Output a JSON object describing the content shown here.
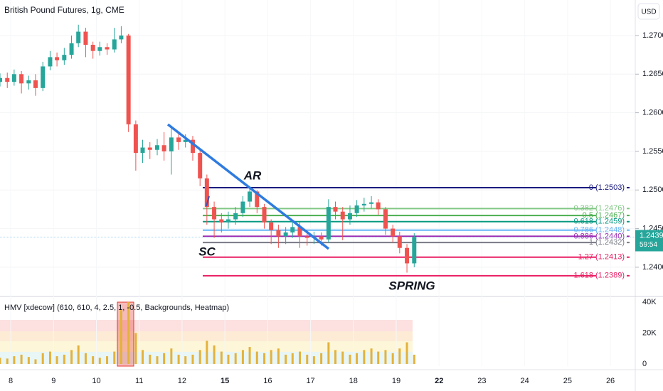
{
  "chart_data": {
    "type": "candlestick",
    "title": "British Pound Futures, 1g, CME",
    "currency": "USD",
    "up_color": "#26a69a",
    "down_color": "#ef5350",
    "xlim": [
      -0.25,
      14.58
    ],
    "xticks": [
      {
        "value": 0,
        "label": "8"
      },
      {
        "value": 1,
        "label": "9"
      },
      {
        "value": 2,
        "label": "10"
      },
      {
        "value": 3,
        "label": "11"
      },
      {
        "value": 4,
        "label": "12"
      },
      {
        "value": 5,
        "label": "15"
      },
      {
        "value": 6,
        "label": "16"
      },
      {
        "value": 7,
        "label": "17"
      },
      {
        "value": 8,
        "label": "18"
      },
      {
        "value": 9,
        "label": "19"
      },
      {
        "value": 10,
        "label": "22"
      },
      {
        "value": 11,
        "label": "23"
      },
      {
        "value": 12,
        "label": "24"
      },
      {
        "value": 13,
        "label": "25"
      },
      {
        "value": 14,
        "label": "26"
      }
    ],
    "ylim": [
      1.2364,
      1.2746
    ],
    "yticks": [
      {
        "value": 1.24,
        "label": "1.2400"
      },
      {
        "value": 1.245,
        "label": "1.2450"
      },
      {
        "value": 1.25,
        "label": "1.2500"
      },
      {
        "value": 1.255,
        "label": "1.2550"
      },
      {
        "value": 1.26,
        "label": "1.2600"
      },
      {
        "value": 1.265,
        "label": "1.2650"
      },
      {
        "value": 1.27,
        "label": "1.2700"
      }
    ],
    "x": [
      -0.25,
      -0.08,
      0.08,
      0.25,
      0.42,
      0.58,
      0.75,
      0.92,
      1.08,
      1.25,
      1.42,
      1.58,
      1.75,
      1.92,
      2.08,
      2.25,
      2.42,
      2.58,
      2.75,
      2.92,
      3.08,
      3.25,
      3.42,
      3.58,
      3.75,
      3.92,
      4.08,
      4.25,
      4.42,
      4.58,
      4.75,
      4.92,
      5.08,
      5.25,
      5.42,
      5.58,
      5.75,
      5.92,
      6.08,
      6.25,
      6.42,
      6.58,
      6.75,
      6.92,
      7.08,
      7.25,
      7.42,
      7.58,
      7.75,
      7.92,
      8.08,
      8.25,
      8.42,
      8.58,
      8.75,
      8.92,
      9.08,
      9.25,
      9.42
    ],
    "ohlc": [
      [
        1.264,
        1.2651,
        1.2634,
        1.2645
      ],
      [
        1.2645,
        1.2652,
        1.2632,
        1.264
      ],
      [
        1.264,
        1.2656,
        1.2635,
        1.265
      ],
      [
        1.265,
        1.2654,
        1.2625,
        1.2638
      ],
      [
        1.2638,
        1.2648,
        1.263,
        1.2642
      ],
      [
        1.2642,
        1.265,
        1.2622,
        1.2632
      ],
      [
        1.2632,
        1.2666,
        1.2628,
        1.266
      ],
      [
        1.266,
        1.268,
        1.2655,
        1.2672
      ],
      [
        1.2672,
        1.2678,
        1.266,
        1.2668
      ],
      [
        1.2668,
        1.2684,
        1.2662,
        1.2675
      ],
      [
        1.2675,
        1.27,
        1.267,
        1.269
      ],
      [
        1.269,
        1.2714,
        1.2685,
        1.2705
      ],
      [
        1.2705,
        1.271,
        1.2672,
        1.2688
      ],
      [
        1.2688,
        1.2692,
        1.267,
        1.268
      ],
      [
        1.268,
        1.2692,
        1.2674,
        1.2685
      ],
      [
        1.2685,
        1.269,
        1.2675,
        1.2682
      ],
      [
        1.2682,
        1.271,
        1.2678,
        1.2695
      ],
      [
        1.2695,
        1.2712,
        1.269,
        1.27
      ],
      [
        1.27,
        1.2702,
        1.2575,
        1.2585
      ],
      [
        1.2585,
        1.259,
        1.2525,
        1.2548
      ],
      [
        1.2548,
        1.2565,
        1.2535,
        1.2555
      ],
      [
        1.2555,
        1.2562,
        1.254,
        1.2552
      ],
      [
        1.2552,
        1.2566,
        1.2545,
        1.2558
      ],
      [
        1.2558,
        1.2575,
        1.2538,
        1.255
      ],
      [
        1.255,
        1.258,
        1.252,
        1.2568
      ],
      [
        1.2568,
        1.2575,
        1.2552,
        1.2562
      ],
      [
        1.2562,
        1.2572,
        1.2555,
        1.2565
      ],
      [
        1.2565,
        1.257,
        1.2538,
        1.2548
      ],
      [
        1.2548,
        1.2552,
        1.2505,
        1.2515
      ],
      [
        1.2515,
        1.252,
        1.2455,
        1.2478
      ],
      [
        1.2478,
        1.2485,
        1.2438,
        1.2462
      ],
      [
        1.2462,
        1.247,
        1.2445,
        1.2458
      ],
      [
        1.2458,
        1.2472,
        1.245,
        1.2462
      ],
      [
        1.2462,
        1.2478,
        1.2455,
        1.247
      ],
      [
        1.247,
        1.2492,
        1.2465,
        1.2485
      ],
      [
        1.2485,
        1.2505,
        1.2478,
        1.2498
      ],
      [
        1.2498,
        1.25,
        1.247,
        1.2478
      ],
      [
        1.2478,
        1.2482,
        1.245,
        1.2458
      ],
      [
        1.2458,
        1.2462,
        1.243,
        1.2448
      ],
      [
        1.2448,
        1.2455,
        1.2425,
        1.244
      ],
      [
        1.244,
        1.2452,
        1.243,
        1.2445
      ],
      [
        1.2445,
        1.246,
        1.2438,
        1.2452
      ],
      [
        1.2452,
        1.2458,
        1.2425,
        1.244
      ],
      [
        1.244,
        1.2448,
        1.2428,
        1.2438
      ],
      [
        1.2438,
        1.2446,
        1.243,
        1.244
      ],
      [
        1.244,
        1.2445,
        1.2428,
        1.2436
      ],
      [
        1.2436,
        1.2488,
        1.2432,
        1.2478
      ],
      [
        1.2478,
        1.2485,
        1.2462,
        1.2472
      ],
      [
        1.2472,
        1.2478,
        1.2435,
        1.2462
      ],
      [
        1.2462,
        1.248,
        1.2455,
        1.247
      ],
      [
        1.247,
        1.2487,
        1.2465,
        1.248
      ],
      [
        1.248,
        1.249,
        1.2472,
        1.2482
      ],
      [
        1.2482,
        1.2492,
        1.2476,
        1.2484
      ],
      [
        1.2484,
        1.2488,
        1.2468,
        1.2475
      ],
      [
        1.2475,
        1.2478,
        1.2442,
        1.245
      ],
      [
        1.245,
        1.2455,
        1.2432,
        1.244
      ],
      [
        1.244,
        1.2446,
        1.2418,
        1.2425
      ],
      [
        1.2425,
        1.243,
        1.2393,
        1.2405
      ],
      [
        1.2405,
        1.2444,
        1.24,
        1.2439
      ]
    ],
    "last_price": {
      "value": 1.2439,
      "label": "1.2439"
    },
    "countdown": "59:54",
    "fib_levels": [
      {
        "value": 1.2503,
        "label": "0 (1.2503)",
        "color": "#1a1a80"
      },
      {
        "value": 1.2476,
        "label": "0.382 (1.2476)",
        "color": "#81c784"
      },
      {
        "value": 1.2467,
        "label": "0.5 (1.2467)",
        "color": "#4caf50"
      },
      {
        "value": 1.2459,
        "label": "0.618 (1.2459)",
        "color": "#089981"
      },
      {
        "value": 1.2448,
        "label": "0.786 (1.2448)",
        "color": "#64b5f6"
      },
      {
        "value": 1.244,
        "label": "0.886 (1.2440)",
        "color": "#9c27b0"
      },
      {
        "value": 1.2432,
        "label": "1 (1.2432)",
        "color": "#787b86"
      },
      {
        "value": 1.2413,
        "label": "1.27 (1.2413)",
        "color": "#e91e63"
      },
      {
        "value": 1.2389,
        "label": "1.618 (1.2389)",
        "color": "#e91e63"
      }
    ],
    "annotations": [
      "AR",
      "SC",
      "SPRING"
    ],
    "volume": {
      "name": "HMV [xdecow] (610, 610, 4, 2.5, 1, -0.5, Backgrounds, Heatmap)",
      "color": "#e3b23c",
      "ylim": [
        -1400,
        43200
      ],
      "yticks": [
        0,
        {
          "value": 20000,
          "label": "20K"
        },
        {
          "value": 40000,
          "label": "40K"
        }
      ],
      "values": [
        4000,
        3500,
        5000,
        6000,
        4500,
        3000,
        7000,
        8000,
        5000,
        6000,
        9000,
        12000,
        7000,
        5000,
        4000,
        5000,
        8000,
        35000,
        40000,
        20000,
        9000,
        6000,
        5000,
        7000,
        10000,
        6000,
        5000,
        6000,
        9000,
        15000,
        12000,
        8000,
        6000,
        7000,
        9000,
        11000,
        8000,
        7000,
        9000,
        10000,
        6000,
        7000,
        8000,
        6000,
        5000,
        7000,
        14000,
        9000,
        8000,
        6000,
        7000,
        9000,
        10000,
        8000,
        9000,
        7000,
        10000,
        14000,
        6000
      ]
    }
  }
}
